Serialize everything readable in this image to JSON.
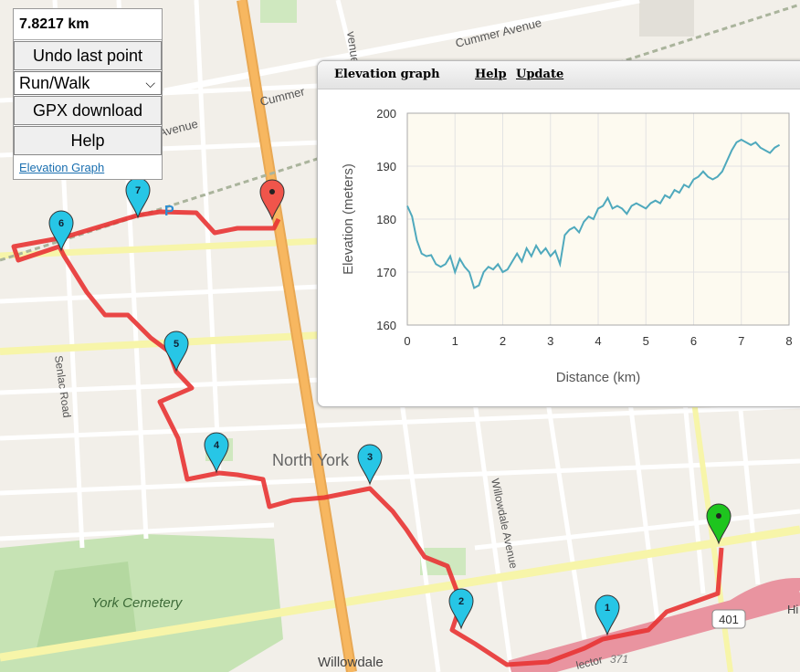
{
  "map": {
    "labels": {
      "cummer_top": "Cummer Avenue",
      "cummer_mid": "Cummer",
      "avenue_left": "Avenue",
      "avenue_top": "venue",
      "senlac": "Senlac Road",
      "north_york": "North York",
      "york_cemetery": "York Cemetery",
      "willowdale_ave": "Willowdale Avenue",
      "willowdale": "Willowdale",
      "highway_shield": "401",
      "route_371": "371",
      "hi": "Hi",
      "parking": "P",
      "lector": "lector"
    },
    "markers": [
      "1",
      "2",
      "3",
      "4",
      "5",
      "6",
      "7"
    ],
    "colors": {
      "route": "#e83333",
      "marker": "#27c6e6",
      "start": "#1ec51e",
      "end": "#f0554b"
    }
  },
  "controls": {
    "distance": "7.8217 km",
    "undo": "Undo last point",
    "mode": "Run/Walk",
    "gpx": "GPX download",
    "help": "Help",
    "elevation_link": "Elevation Graph"
  },
  "elevation_panel": {
    "title": "Elevation graph",
    "help": "Help",
    "update": "Update",
    "chart_data": {
      "type": "line",
      "xlabel": "Distance (km)",
      "ylabel": "Elevation (meters)",
      "xlim": [
        0,
        8
      ],
      "ylim": [
        160,
        200
      ],
      "xticks": [
        "0",
        "1",
        "2",
        "3",
        "4",
        "5",
        "6",
        "7",
        "8"
      ],
      "yticks": [
        "160",
        "170",
        "180",
        "190",
        "200"
      ],
      "grid": true,
      "series": [
        {
          "color": "#4fa9bd",
          "x": [
            0.0,
            0.1,
            0.2,
            0.3,
            0.4,
            0.5,
            0.6,
            0.7,
            0.8,
            0.9,
            1.0,
            1.1,
            1.2,
            1.3,
            1.4,
            1.5,
            1.6,
            1.7,
            1.8,
            1.9,
            2.0,
            2.1,
            2.2,
            2.3,
            2.4,
            2.5,
            2.6,
            2.7,
            2.8,
            2.9,
            3.0,
            3.1,
            3.2,
            3.3,
            3.4,
            3.5,
            3.6,
            3.7,
            3.8,
            3.9,
            4.0,
            4.1,
            4.2,
            4.3,
            4.4,
            4.5,
            4.6,
            4.7,
            4.8,
            4.9,
            5.0,
            5.1,
            5.2,
            5.3,
            5.4,
            5.5,
            5.6,
            5.7,
            5.8,
            5.9,
            6.0,
            6.1,
            6.2,
            6.3,
            6.4,
            6.5,
            6.6,
            6.7,
            6.8,
            6.9,
            7.0,
            7.1,
            7.2,
            7.3,
            7.4,
            7.5,
            7.6,
            7.7,
            7.8
          ],
          "y": [
            182.5,
            180.5,
            176.0,
            173.5,
            173.0,
            173.2,
            171.5,
            171.0,
            171.5,
            173.0,
            170.0,
            172.5,
            171.0,
            170.0,
            167.0,
            167.5,
            170.0,
            171.0,
            170.5,
            171.5,
            170.0,
            170.5,
            172.0,
            173.5,
            172.0,
            174.5,
            173.0,
            175.0,
            173.5,
            174.5,
            173.0,
            174.0,
            171.5,
            177.0,
            178.0,
            178.5,
            177.5,
            179.5,
            180.5,
            180.0,
            182.0,
            182.5,
            184.0,
            182.0,
            182.5,
            182.0,
            181.0,
            182.5,
            183.0,
            182.5,
            182.0,
            183.0,
            183.5,
            183.0,
            184.5,
            184.0,
            185.5,
            185.0,
            186.5,
            186.0,
            187.5,
            188.0,
            189.0,
            188.0,
            187.5,
            188.0,
            189.0,
            191.0,
            193.0,
            194.5,
            195.0,
            194.5,
            194.0,
            194.5,
            193.5,
            193.0,
            192.5,
            193.5,
            194.0
          ]
        }
      ]
    }
  }
}
